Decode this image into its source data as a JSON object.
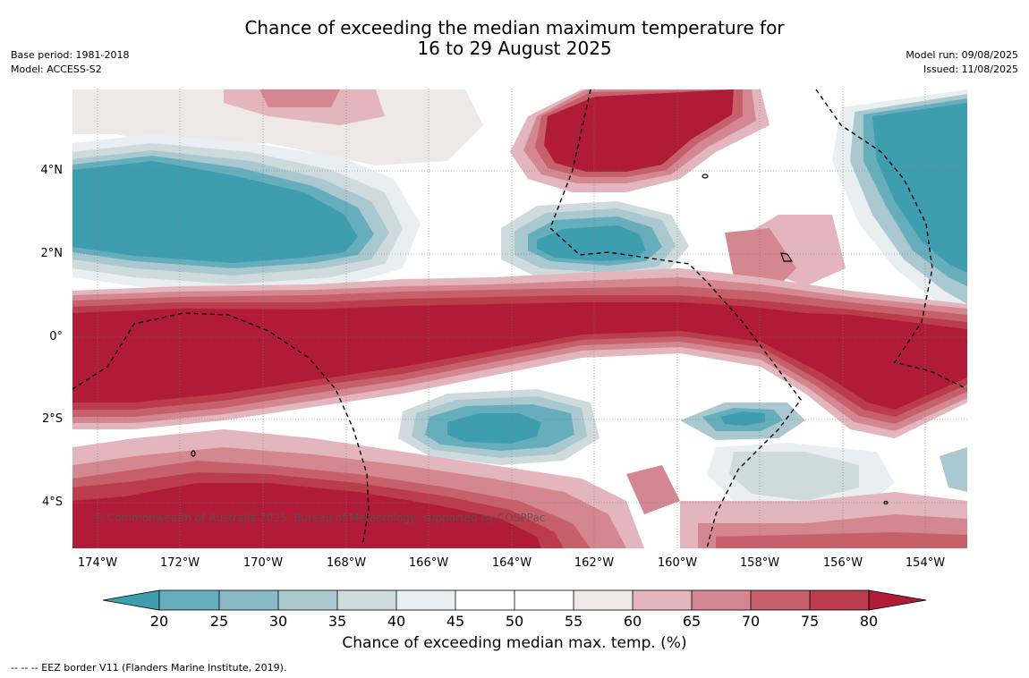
{
  "title_line1": "Chance of exceeding the median maximum temperature for",
  "title_line2": "16 to 29 August 2025",
  "base_period": "Base period: 1981-2018",
  "model": "Model: ACCESS-S2",
  "model_run": "Model run: 09/08/2025",
  "issued": "Issued: 11/08/2025",
  "copyright": "© Commonwealth of Australia 2025, Bureau of Meteorology, supported by COSPPac",
  "colorbar_title": "Chance of exceeding median max. temp. (%)",
  "footer_note": "--  --  -- EEZ border V11 (Flanders Marine Institute, 2019).",
  "lat_labels": [
    "4°N",
    "2°N",
    "0°",
    "2°S",
    "4°S"
  ],
  "lon_labels": [
    "174°W",
    "172°W",
    "170°W",
    "168°W",
    "166°W",
    "164°W",
    "162°W",
    "160°W",
    "158°W",
    "156°W",
    "154°W"
  ],
  "colorbar_ticks": [
    "20",
    "25",
    "30",
    "35",
    "40",
    "45",
    "50",
    "55",
    "60",
    "65",
    "70",
    "75",
    "80"
  ],
  "colorbar_colors": [
    "#3f9db0",
    "#67aebc",
    "#8abac6",
    "#a9c8cf",
    "#cfdadd",
    "#e9eff0",
    "#ffffff",
    "#ffffff",
    "#efe8e9",
    "#e2b6bc",
    "#d48790",
    "#c6616c",
    "#bb3c4c",
    "#b01c38"
  ]
}
